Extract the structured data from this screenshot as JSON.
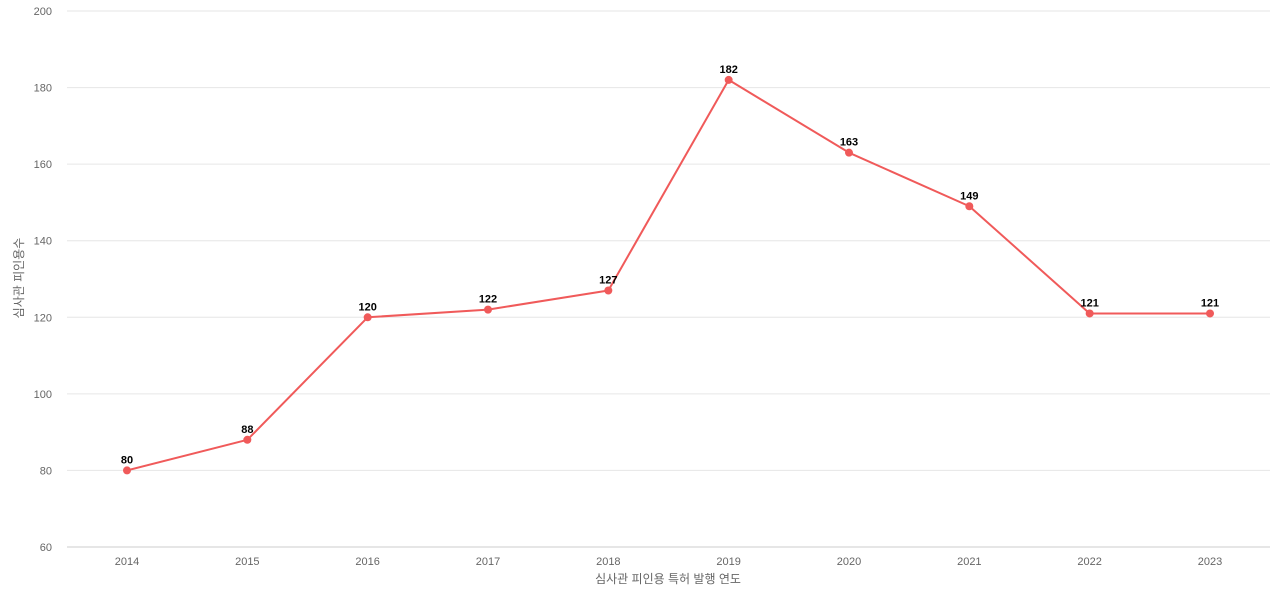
{
  "chart_data": {
    "type": "line",
    "xlabel": "심사관 피인용 특허 발행 연도",
    "ylabel": "심사관 피인용수",
    "x": [
      "2014",
      "2015",
      "2016",
      "2017",
      "2018",
      "2019",
      "2020",
      "2021",
      "2022",
      "2023"
    ],
    "series": [
      {
        "values": [
          80,
          88,
          120,
          122,
          127,
          182,
          163,
          149,
          121,
          121
        ]
      }
    ],
    "ylim": [
      60,
      200
    ],
    "yticks": [
      60,
      80,
      100,
      120,
      140,
      160,
      180,
      200
    ],
    "grid": true,
    "data_labels": true,
    "colors": {
      "line": "#f05a5a",
      "grid": "#e6e6e6",
      "tick_text": "#666666",
      "label_text": "#000000"
    }
  }
}
